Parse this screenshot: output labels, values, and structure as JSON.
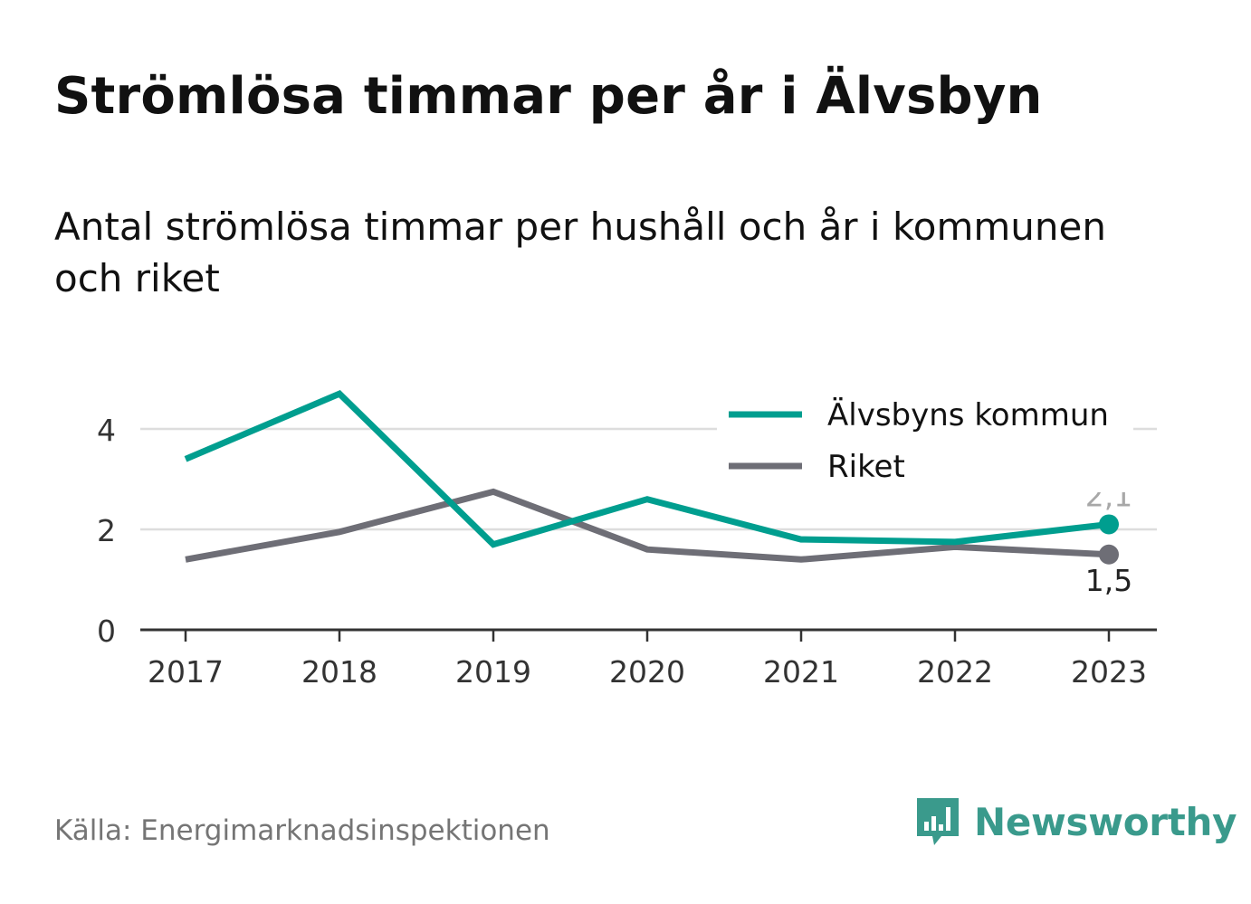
{
  "title": "Strömlösa timmar per år i Älvsbyn",
  "subtitle": "Antal strömlösa timmar per hushåll och år i kommunen och riket",
  "source": "Källa: Energimarknadsinspektionen",
  "brand": {
    "name": "Newsworthy",
    "color": "#3a9a8c",
    "logo_icon": "bar-chart-speech-bubble-icon"
  },
  "colors": {
    "series_1": "#009e8f",
    "series_2": "#6e6e76",
    "grid": "#dddddd",
    "axis": "#333333"
  },
  "chart_data": {
    "type": "line",
    "x": [
      "2017",
      "2018",
      "2019",
      "2020",
      "2021",
      "2022",
      "2023"
    ],
    "series": [
      {
        "name": "Älvsbyns kommun",
        "values": [
          3.4,
          4.7,
          1.7,
          2.6,
          1.8,
          1.75,
          2.1
        ],
        "end_label": "2,1"
      },
      {
        "name": "Riket",
        "values": [
          1.4,
          1.95,
          2.75,
          1.6,
          1.4,
          1.65,
          1.5
        ],
        "end_label": "1,5"
      }
    ],
    "ylim": [
      0,
      4.9
    ],
    "yticks": [
      0,
      2,
      4
    ],
    "xlabel": "",
    "ylabel": "",
    "grid": true,
    "legend": "top-right"
  }
}
